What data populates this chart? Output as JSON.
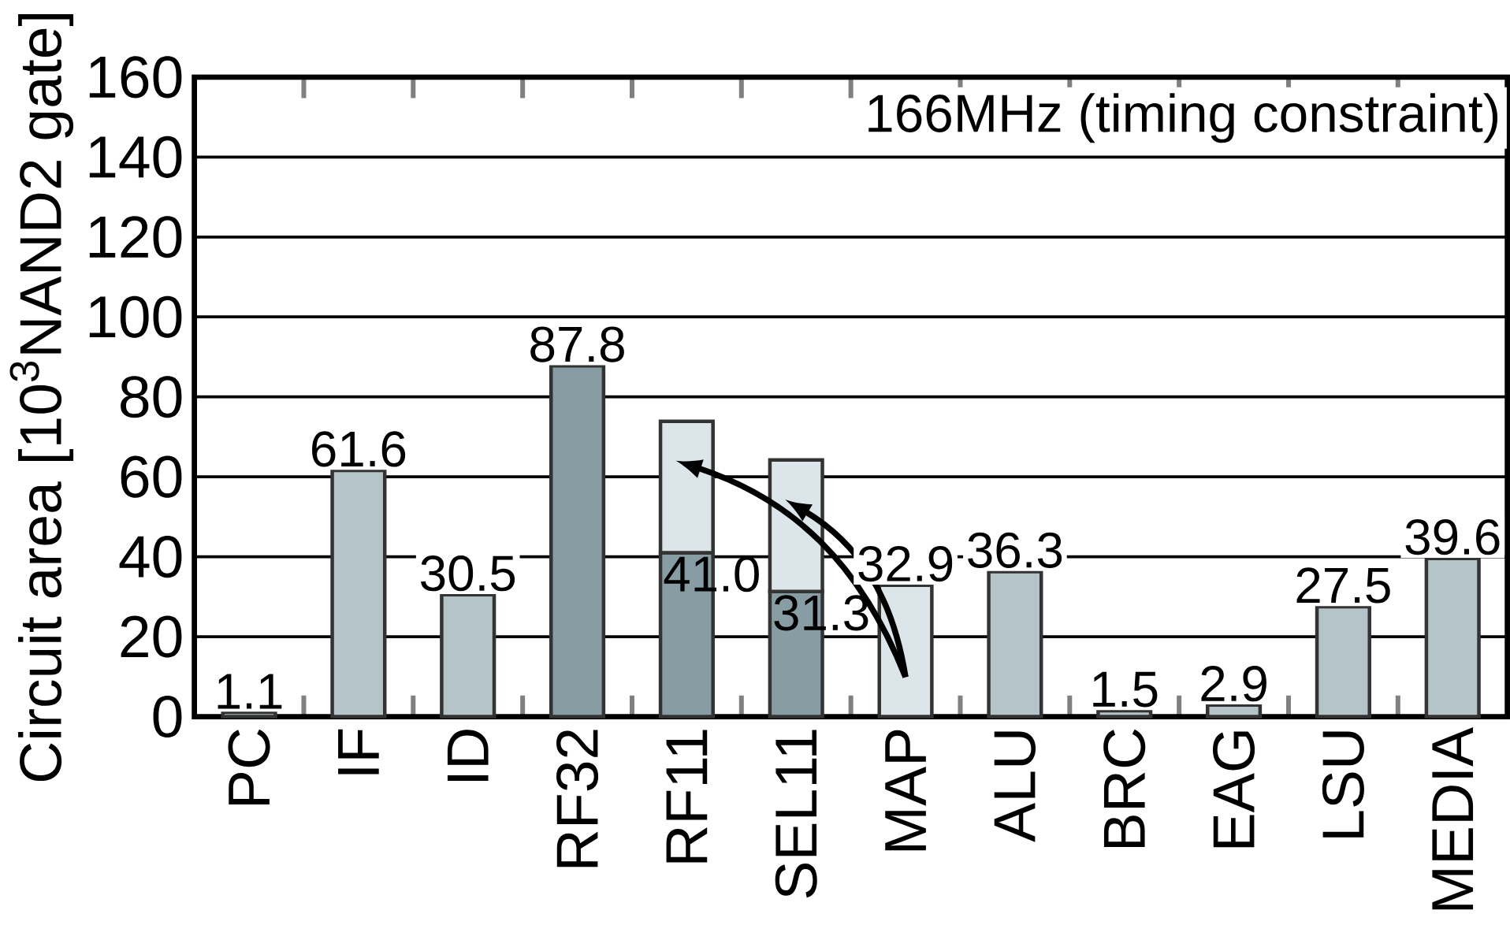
{
  "chart_data": {
    "type": "bar",
    "stacked": true,
    "ylabel": "Circuit area [10$^{3}$NAND2 gate]",
    "categories": [
      "PC",
      "IF",
      "ID",
      "RF32",
      "RF11",
      "SEL11",
      "MAP",
      "ALU",
      "BRC",
      "EAG",
      "LSU",
      "MEDIA"
    ],
    "series": [
      {
        "values": [
          1.1,
          61.6,
          30.5,
          87.8,
          41.0,
          31.3,
          32.9,
          36.3,
          1.5,
          2.9,
          27.5,
          39.6
        ],
        "colors": [
          "#b4c4c8",
          "#b4c4c8",
          "#b4c4c8",
          "#879ca3",
          "#879ca3",
          "#879ca3",
          "#dce6ea",
          "#b4c4c8",
          "#b4c4c8",
          "#b4c4c8",
          "#b4c4c8",
          "#b4c4c8"
        ],
        "value_labels": [
          "1.1",
          "61.6",
          "30.5",
          "87.8",
          "41.0",
          "31.3",
          "32.9",
          "36.3",
          "1.5",
          "2.9",
          "27.5",
          "39.6"
        ]
      },
      {
        "values": [
          null,
          null,
          null,
          null,
          32.9,
          32.9,
          null,
          null,
          null,
          null,
          null,
          null
        ],
        "color": "#dce6ea"
      }
    ],
    "ylim": [
      0,
      160
    ],
    "yticks": [
      0,
      20,
      40,
      60,
      80,
      100,
      120,
      140,
      160
    ],
    "grid": "y",
    "annotations": [
      "166MHz (timing constraint)"
    ]
  }
}
